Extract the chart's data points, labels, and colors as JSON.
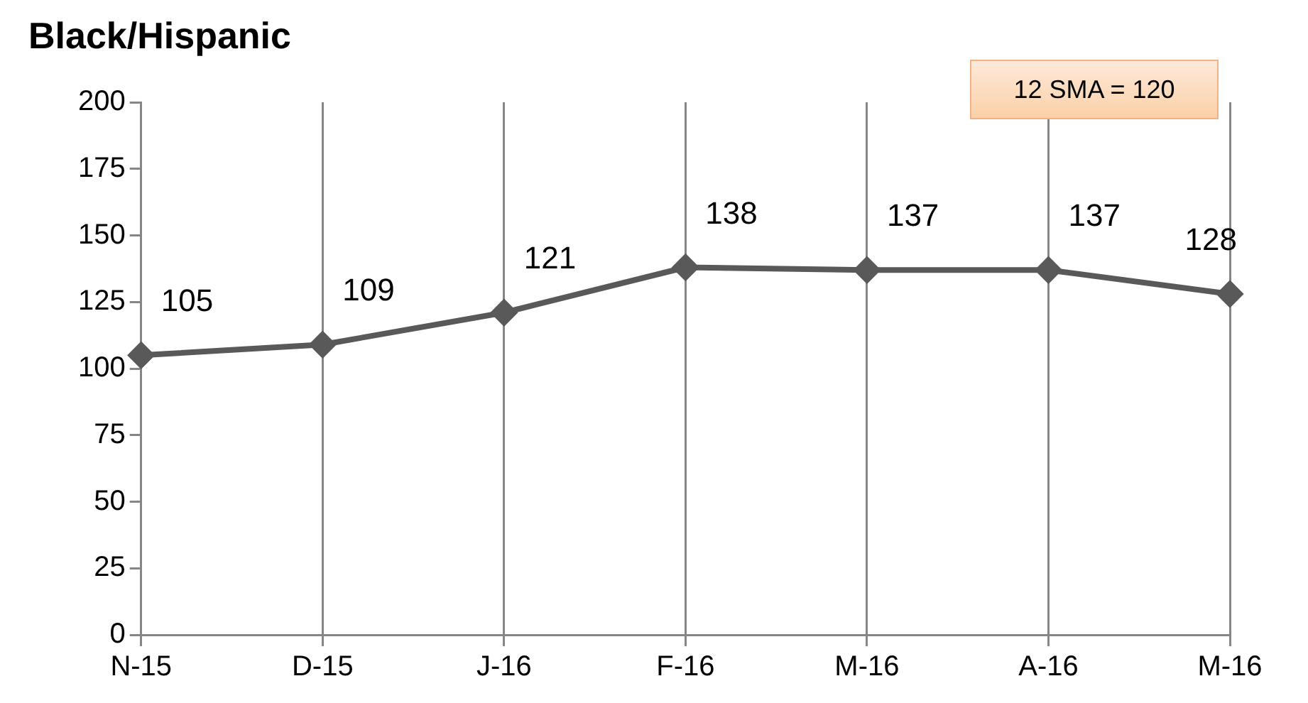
{
  "chart_data": {
    "type": "line",
    "title": "Black/Hispanic",
    "categories": [
      "N-15",
      "D-15",
      "J-16",
      "F-16",
      "M-16",
      "A-16",
      "M-16"
    ],
    "series": [
      {
        "color": "#595959",
        "values": [
          105,
          109,
          121,
          138,
          137,
          137,
          128
        ]
      }
    ],
    "ylim": [
      0,
      200
    ],
    "yticks": [
      0,
      25,
      50,
      75,
      100,
      125,
      150,
      175,
      200
    ],
    "grid": "x",
    "marker": "diamond",
    "line_style": "solid",
    "data_labels": true,
    "legend": false,
    "annotations": [
      "12 SMA = 120"
    ]
  }
}
